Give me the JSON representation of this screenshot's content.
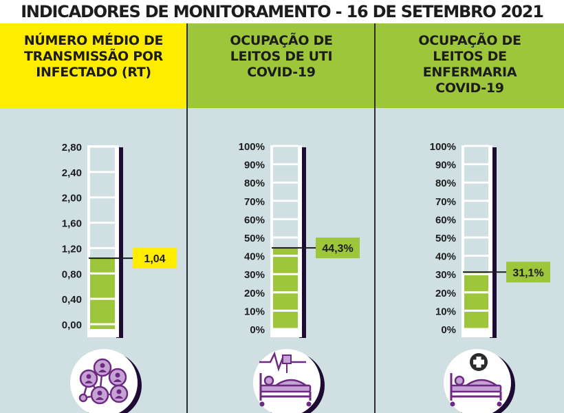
{
  "title": "INDICADORES DE MONITORAMENTO - 16 DE SETEMBRO 2021",
  "colors": {
    "yellow": "#ffed00",
    "green": "#9dc63a",
    "panel_bg": "#cfdfe2",
    "purple": "#6e2a83",
    "lilac": "#c5a4d4",
    "tube_shadow": "#1e0b33"
  },
  "chart_data": [
    {
      "type": "thermometer",
      "title": "NÚMERO MÉDIO DE\nTRANSMISSÃO POR\nINFECTADO (RT)",
      "tick_labels": [
        "2,80",
        "2,40",
        "2,00",
        "1,60",
        "1,20",
        "0,80",
        "0,40",
        "0,00"
      ],
      "ticks": [
        2.8,
        2.4,
        2.0,
        1.6,
        1.2,
        0.8,
        0.4,
        0.0
      ],
      "value": 1.04,
      "value_label": "1,04",
      "ylim": [
        0,
        2.8
      ],
      "accent": "yellow",
      "icon": "network-people-icon"
    },
    {
      "type": "thermometer",
      "title": "OCUPAÇÃO DE\nLEITOS DE UTI\nCOVID-19",
      "tick_labels": [
        "100%",
        "90%",
        "80%",
        "70%",
        "60%",
        "50%",
        "40%",
        "30%",
        "20%",
        "10%",
        "0%"
      ],
      "ticks": [
        100,
        90,
        80,
        70,
        60,
        50,
        40,
        30,
        20,
        10,
        0
      ],
      "value": 44.3,
      "value_label": "44,3%",
      "ylim": [
        0,
        100
      ],
      "accent": "green",
      "icon": "icu-bed-icon"
    },
    {
      "type": "thermometer",
      "title": "OCUPAÇÃO DE\nLEITOS DE\nENFERMARIA\nCOVID-19",
      "tick_labels": [
        "100%",
        "90%",
        "80%",
        "70%",
        "60%",
        "50%",
        "40%",
        "30%",
        "20%",
        "10%",
        "0%"
      ],
      "ticks": [
        100,
        90,
        80,
        70,
        60,
        50,
        40,
        30,
        20,
        10,
        0
      ],
      "value": 31.1,
      "value_label": "31,1%",
      "ylim": [
        0,
        100
      ],
      "accent": "green",
      "icon": "ward-bed-icon"
    }
  ]
}
